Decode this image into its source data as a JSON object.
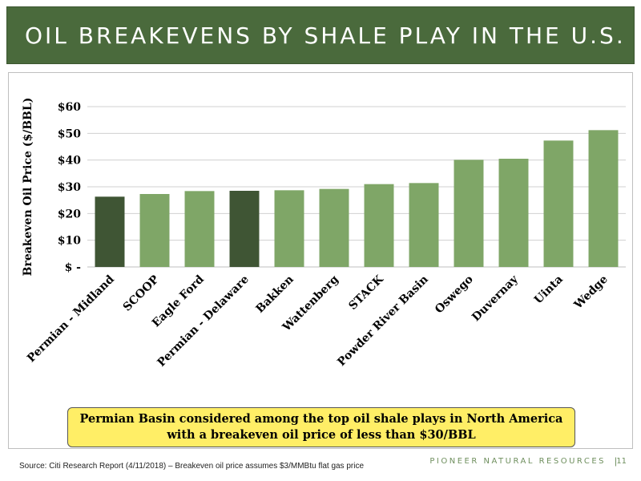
{
  "header": {
    "title": "OIL BREAKEVENS BY SHALE PLAY IN THE U.S."
  },
  "chart_data": {
    "type": "bar",
    "ylabel": "Breakeven Oil Price ($/BBL)",
    "xlabel": "",
    "ylim": [
      0,
      60
    ],
    "yticks": [
      {
        "value": 0,
        "label": "$ -"
      },
      {
        "value": 10,
        "label": "$10"
      },
      {
        "value": 20,
        "label": "$20"
      },
      {
        "value": 30,
        "label": "$30"
      },
      {
        "value": 40,
        "label": "$40"
      },
      {
        "value": 50,
        "label": "$50"
      },
      {
        "value": 60,
        "label": "$60"
      }
    ],
    "categories": [
      "Permian - Midland",
      "SCOOP",
      "Eagle Ford",
      "Permian - Delaware",
      "Bakken",
      "Wattenberg",
      "STACK",
      "Powder River Basin",
      "Oswego",
      "Duvernay",
      "Uinta",
      "Wedge"
    ],
    "values": [
      26.3,
      27.3,
      28.4,
      28.5,
      28.7,
      29.2,
      31.0,
      31.4,
      40.1,
      40.5,
      47.3,
      51.2
    ],
    "highlight": [
      "Permian - Midland",
      "Permian - Delaware"
    ],
    "colors": {
      "default": "#7fa667",
      "highlight": "#3f5534",
      "gridline": "#d0d0d0"
    },
    "grid": true
  },
  "callout": {
    "line1": "Permian Basin considered among the top oil shale plays in North America",
    "line2": "with a breakeven oil price of less than $30/BBL"
  },
  "footer": {
    "source": "Source: Citi Research Report (4/11/2018) – Breakeven oil price assumes  $3/MMBtu flat gas price",
    "brand": "PIONEER NATURAL RESOURCES",
    "separator": "|",
    "page": "11"
  }
}
